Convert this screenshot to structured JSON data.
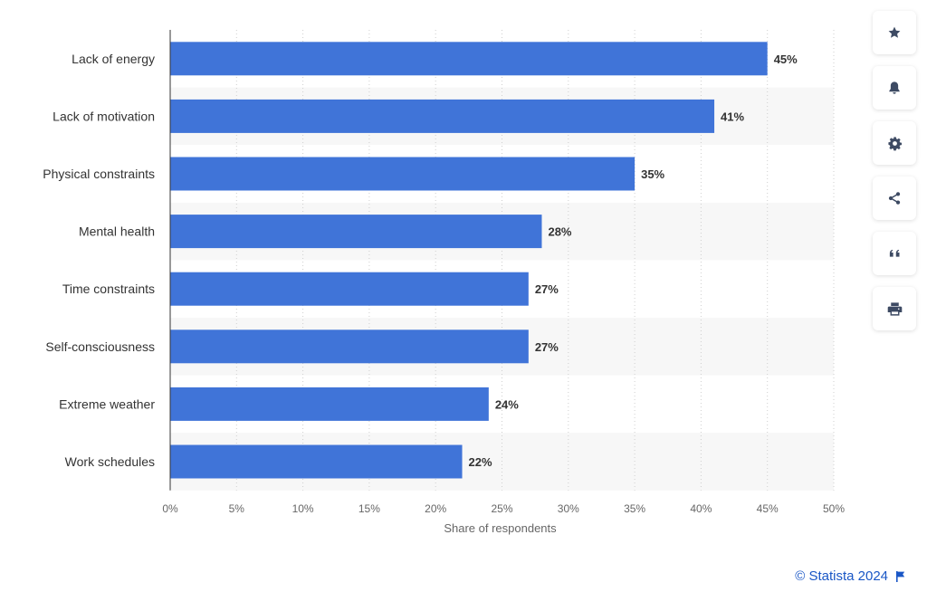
{
  "chart_data": {
    "type": "bar",
    "orientation": "horizontal",
    "categories": [
      "Lack of energy",
      "Lack of motivation",
      "Physical constraints",
      "Mental health",
      "Time constraints",
      "Self-consciousness",
      "Extreme weather",
      "Work schedules"
    ],
    "values": [
      45,
      41,
      35,
      28,
      27,
      27,
      24,
      22
    ],
    "value_labels": [
      "45%",
      "41%",
      "35%",
      "28%",
      "27%",
      "27%",
      "24%",
      "22%"
    ],
    "xlabel": "Share of respondents",
    "ylabel": "",
    "xlim": [
      0,
      50
    ],
    "x_ticks": [
      0,
      5,
      10,
      15,
      20,
      25,
      30,
      35,
      40,
      45,
      50
    ],
    "x_tick_labels": [
      "0%",
      "5%",
      "10%",
      "15%",
      "20%",
      "25%",
      "30%",
      "35%",
      "40%",
      "45%",
      "50%"
    ],
    "grid": true,
    "bar_color": "#4074d8",
    "stripe_color": "#f7f7f7"
  },
  "toolbar": {
    "items": [
      {
        "name": "star-icon"
      },
      {
        "name": "bell-icon"
      },
      {
        "name": "gear-icon"
      },
      {
        "name": "share-icon"
      },
      {
        "name": "quote-icon"
      },
      {
        "name": "print-icon"
      }
    ]
  },
  "footer": {
    "credit": "© Statista 2024",
    "credit_color": "#1a57c6",
    "flag_icon": "flag-icon"
  }
}
